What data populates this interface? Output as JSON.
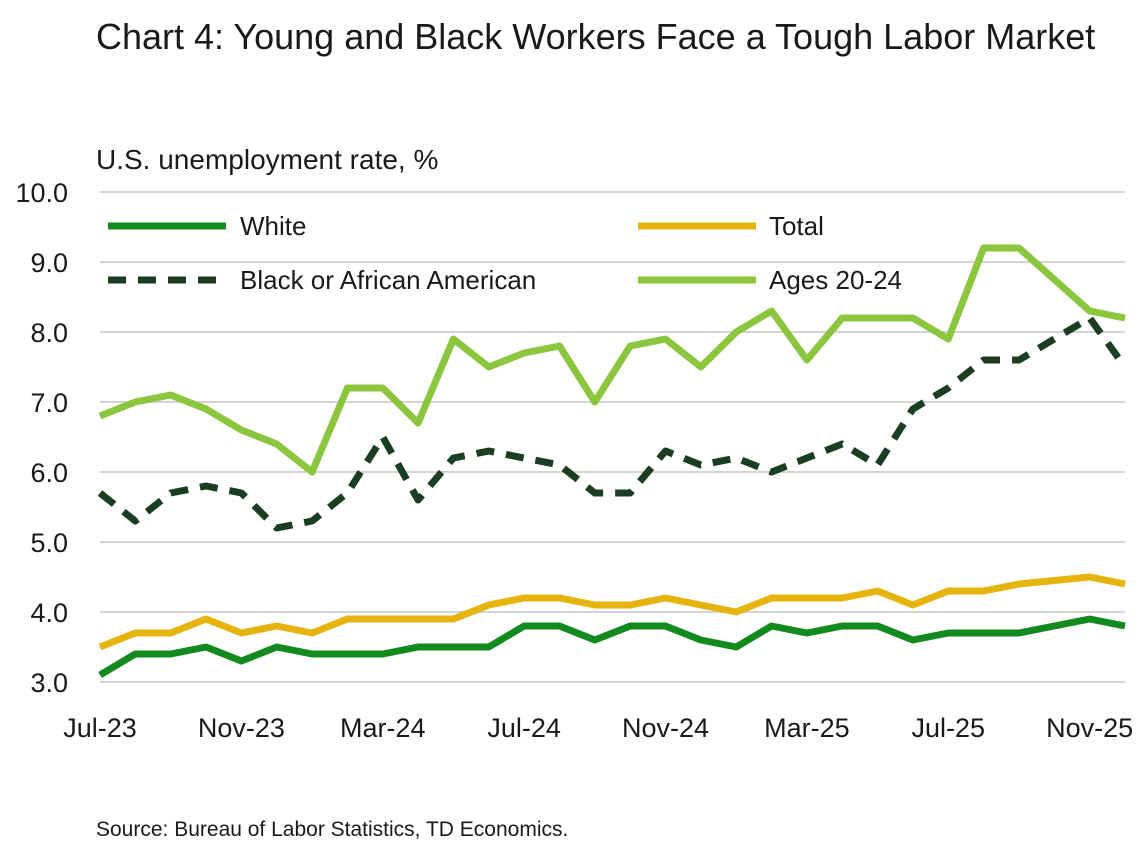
{
  "title": "Chart 4: Young and Black Workers Face a Tough Labor Market",
  "source": "Source: Bureau of Labor Statistics, TD Economics.",
  "chart_data": {
    "type": "line",
    "title": "Chart 4: Young and Black Workers Face a Tough Labor Market",
    "subtitle": "U.S. unemployment rate, %",
    "ylim": [
      3.0,
      10.0
    ],
    "yticks": [
      "10.0",
      "9.0",
      "8.0",
      "7.0",
      "6.0",
      "5.0",
      "4.0",
      "3.0"
    ],
    "ytick_values": [
      10,
      9,
      8,
      7,
      6,
      5,
      4,
      3
    ],
    "x": [
      "Jul-23",
      "Aug-23",
      "Sep-23",
      "Oct-23",
      "Nov-23",
      "Dec-23",
      "Jan-24",
      "Feb-24",
      "Mar-24",
      "Apr-24",
      "May-24",
      "Jun-24",
      "Jul-24",
      "Aug-24",
      "Sep-24",
      "Oct-24",
      "Nov-24",
      "Dec-24",
      "Jan-25",
      "Feb-25",
      "Mar-25",
      "Apr-25",
      "May-25",
      "Jun-25",
      "Jul-25",
      "Aug-25",
      "Sep-25",
      "Oct-25",
      "Nov-25",
      "Dec-25"
    ],
    "xticks": [
      "Jul-23",
      "Nov-23",
      "Mar-24",
      "Jul-24",
      "Nov-24",
      "Mar-25",
      "Jul-25",
      "Nov-25"
    ],
    "grid": true,
    "legend_position": "top",
    "series": [
      {
        "name": "White",
        "color": "#138a1e",
        "dash": "solid",
        "values": [
          3.1,
          3.4,
          3.4,
          3.5,
          3.3,
          3.5,
          3.4,
          3.4,
          3.4,
          3.5,
          3.5,
          3.5,
          3.8,
          3.8,
          3.6,
          3.8,
          3.8,
          3.6,
          3.5,
          3.8,
          3.7,
          3.8,
          3.8,
          3.6,
          3.7,
          3.7,
          3.7,
          3.8,
          3.9,
          3.8
        ]
      },
      {
        "name": "Total",
        "color": "#e6b40f",
        "dash": "solid",
        "values": [
          3.5,
          3.7,
          3.7,
          3.9,
          3.7,
          3.8,
          3.7,
          3.9,
          3.9,
          3.9,
          3.9,
          4.1,
          4.2,
          4.2,
          4.1,
          4.1,
          4.2,
          4.1,
          4.0,
          4.2,
          4.2,
          4.2,
          4.3,
          4.1,
          4.3,
          4.3,
          4.4,
          4.45,
          4.5,
          4.4
        ]
      },
      {
        "name": "Black or African American",
        "color": "#1b3d22",
        "dash": "dashed",
        "values": [
          5.7,
          5.3,
          5.7,
          5.8,
          5.7,
          5.2,
          5.3,
          5.7,
          6.5,
          5.6,
          6.2,
          6.3,
          6.2,
          6.1,
          5.7,
          5.7,
          6.3,
          6.1,
          6.2,
          6.0,
          6.2,
          6.4,
          6.1,
          6.9,
          7.2,
          7.6,
          7.6,
          7.9,
          8.2,
          7.5
        ]
      },
      {
        "name": "Ages 20-24",
        "color": "#8cc63f",
        "dash": "solid",
        "values": [
          6.8,
          7.0,
          7.1,
          6.9,
          6.6,
          6.4,
          6.0,
          7.2,
          7.2,
          6.7,
          7.9,
          7.5,
          7.7,
          7.8,
          7.0,
          7.8,
          7.9,
          7.5,
          8.0,
          8.3,
          7.6,
          8.2,
          8.2,
          8.2,
          7.9,
          9.2,
          9.2,
          8.75,
          8.3,
          8.2
        ]
      }
    ]
  }
}
